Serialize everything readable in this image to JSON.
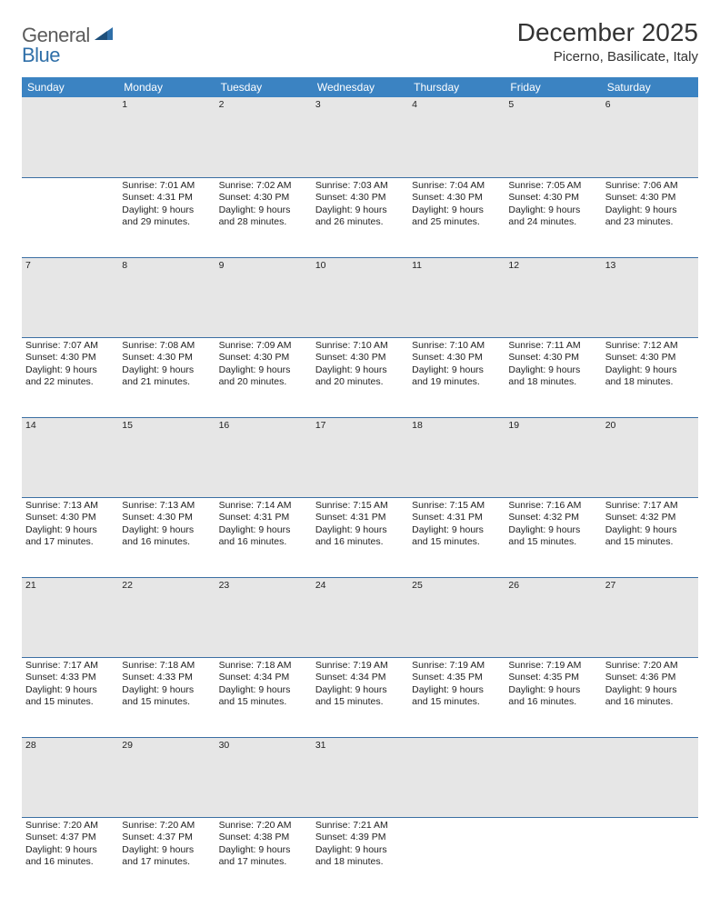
{
  "logo": {
    "general": "General",
    "blue": "Blue"
  },
  "title": "December 2025",
  "location": "Picerno, Basilicate, Italy",
  "dayHeaders": [
    "Sunday",
    "Monday",
    "Tuesday",
    "Wednesday",
    "Thursday",
    "Friday",
    "Saturday"
  ],
  "colors": {
    "headerBg": "#3b83c2",
    "headerText": "#ffffff",
    "daynumBg": "#e6e6e6",
    "rowBorder": "#3b6fa3",
    "logoGray": "#5b5b5b",
    "logoBlue": "#2f6fa8"
  },
  "weeks": [
    {
      "nums": [
        "",
        "1",
        "2",
        "3",
        "4",
        "5",
        "6"
      ],
      "cells": [
        null,
        {
          "sunrise": "7:01 AM",
          "sunset": "4:31 PM",
          "daylight": "9 hours and 29 minutes."
        },
        {
          "sunrise": "7:02 AM",
          "sunset": "4:30 PM",
          "daylight": "9 hours and 28 minutes."
        },
        {
          "sunrise": "7:03 AM",
          "sunset": "4:30 PM",
          "daylight": "9 hours and 26 minutes."
        },
        {
          "sunrise": "7:04 AM",
          "sunset": "4:30 PM",
          "daylight": "9 hours and 25 minutes."
        },
        {
          "sunrise": "7:05 AM",
          "sunset": "4:30 PM",
          "daylight": "9 hours and 24 minutes."
        },
        {
          "sunrise": "7:06 AM",
          "sunset": "4:30 PM",
          "daylight": "9 hours and 23 minutes."
        }
      ]
    },
    {
      "nums": [
        "7",
        "8",
        "9",
        "10",
        "11",
        "12",
        "13"
      ],
      "cells": [
        {
          "sunrise": "7:07 AM",
          "sunset": "4:30 PM",
          "daylight": "9 hours and 22 minutes."
        },
        {
          "sunrise": "7:08 AM",
          "sunset": "4:30 PM",
          "daylight": "9 hours and 21 minutes."
        },
        {
          "sunrise": "7:09 AM",
          "sunset": "4:30 PM",
          "daylight": "9 hours and 20 minutes."
        },
        {
          "sunrise": "7:10 AM",
          "sunset": "4:30 PM",
          "daylight": "9 hours and 20 minutes."
        },
        {
          "sunrise": "7:10 AM",
          "sunset": "4:30 PM",
          "daylight": "9 hours and 19 minutes."
        },
        {
          "sunrise": "7:11 AM",
          "sunset": "4:30 PM",
          "daylight": "9 hours and 18 minutes."
        },
        {
          "sunrise": "7:12 AM",
          "sunset": "4:30 PM",
          "daylight": "9 hours and 18 minutes."
        }
      ]
    },
    {
      "nums": [
        "14",
        "15",
        "16",
        "17",
        "18",
        "19",
        "20"
      ],
      "cells": [
        {
          "sunrise": "7:13 AM",
          "sunset": "4:30 PM",
          "daylight": "9 hours and 17 minutes."
        },
        {
          "sunrise": "7:13 AM",
          "sunset": "4:30 PM",
          "daylight": "9 hours and 16 minutes."
        },
        {
          "sunrise": "7:14 AM",
          "sunset": "4:31 PM",
          "daylight": "9 hours and 16 minutes."
        },
        {
          "sunrise": "7:15 AM",
          "sunset": "4:31 PM",
          "daylight": "9 hours and 16 minutes."
        },
        {
          "sunrise": "7:15 AM",
          "sunset": "4:31 PM",
          "daylight": "9 hours and 15 minutes."
        },
        {
          "sunrise": "7:16 AM",
          "sunset": "4:32 PM",
          "daylight": "9 hours and 15 minutes."
        },
        {
          "sunrise": "7:17 AM",
          "sunset": "4:32 PM",
          "daylight": "9 hours and 15 minutes."
        }
      ]
    },
    {
      "nums": [
        "21",
        "22",
        "23",
        "24",
        "25",
        "26",
        "27"
      ],
      "cells": [
        {
          "sunrise": "7:17 AM",
          "sunset": "4:33 PM",
          "daylight": "9 hours and 15 minutes."
        },
        {
          "sunrise": "7:18 AM",
          "sunset": "4:33 PM",
          "daylight": "9 hours and 15 minutes."
        },
        {
          "sunrise": "7:18 AM",
          "sunset": "4:34 PM",
          "daylight": "9 hours and 15 minutes."
        },
        {
          "sunrise": "7:19 AM",
          "sunset": "4:34 PM",
          "daylight": "9 hours and 15 minutes."
        },
        {
          "sunrise": "7:19 AM",
          "sunset": "4:35 PM",
          "daylight": "9 hours and 15 minutes."
        },
        {
          "sunrise": "7:19 AM",
          "sunset": "4:35 PM",
          "daylight": "9 hours and 16 minutes."
        },
        {
          "sunrise": "7:20 AM",
          "sunset": "4:36 PM",
          "daylight": "9 hours and 16 minutes."
        }
      ]
    },
    {
      "nums": [
        "28",
        "29",
        "30",
        "31",
        "",
        "",
        ""
      ],
      "cells": [
        {
          "sunrise": "7:20 AM",
          "sunset": "4:37 PM",
          "daylight": "9 hours and 16 minutes."
        },
        {
          "sunrise": "7:20 AM",
          "sunset": "4:37 PM",
          "daylight": "9 hours and 17 minutes."
        },
        {
          "sunrise": "7:20 AM",
          "sunset": "4:38 PM",
          "daylight": "9 hours and 17 minutes."
        },
        {
          "sunrise": "7:21 AM",
          "sunset": "4:39 PM",
          "daylight": "9 hours and 18 minutes."
        },
        null,
        null,
        null
      ]
    }
  ],
  "labels": {
    "sunrise": "Sunrise:",
    "sunset": "Sunset:",
    "daylight": "Daylight:"
  }
}
